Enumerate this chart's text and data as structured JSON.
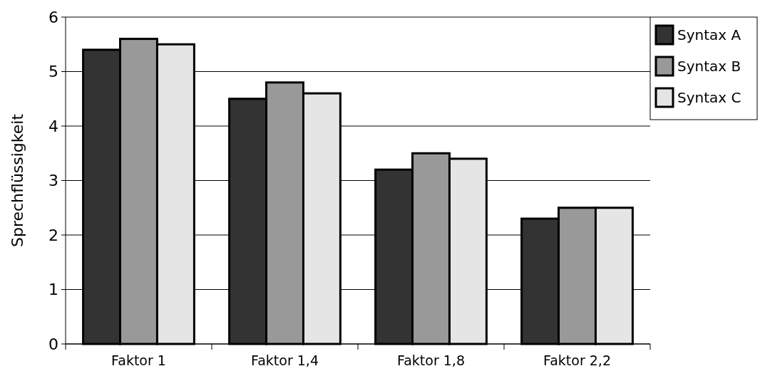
{
  "chart_data": {
    "type": "bar",
    "ylabel": "Sprechflüssigkeit",
    "categories": [
      "Faktor 1",
      "Faktor 1,4",
      "Faktor 1,8",
      "Faktor 2,2"
    ],
    "series": [
      {
        "name": "Syntax A",
        "color": "#333333",
        "values": [
          5.4,
          4.5,
          3.2,
          2.3
        ]
      },
      {
        "name": "Syntax B",
        "color": "#999999",
        "values": [
          5.6,
          4.8,
          3.5,
          2.5
        ]
      },
      {
        "name": "Syntax C",
        "color": "#e5e5e5",
        "values": [
          5.5,
          4.6,
          3.4,
          2.5
        ]
      }
    ],
    "ylim": [
      0,
      6
    ],
    "yticks": [
      0,
      1,
      2,
      3,
      4,
      5,
      6
    ],
    "grid": "y",
    "legend": "top right"
  }
}
